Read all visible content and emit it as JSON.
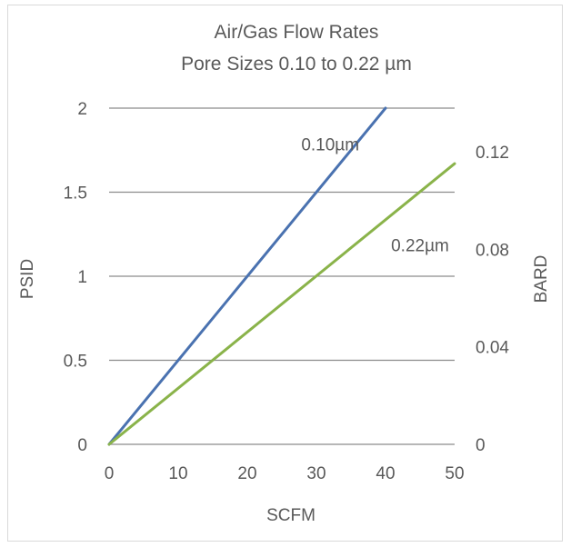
{
  "chart_data": {
    "type": "line",
    "title": "Air/Gas Flow Rates",
    "subtitle": "Pore Sizes 0.10 to 0.22 µm",
    "xlabel": "SCFM",
    "ylabel": "PSID",
    "y2label": "BARD",
    "xlim": [
      0,
      50
    ],
    "ylim": [
      0,
      2
    ],
    "y2lim": [
      0,
      0.1379
    ],
    "x_ticks": [
      "0",
      "10",
      "20",
      "30",
      "40",
      "50"
    ],
    "y_ticks": [
      "0",
      "0.5",
      "1",
      "1.5",
      "2"
    ],
    "y2_ticks": [
      "0",
      "0.04",
      "0.08",
      "0.12"
    ],
    "grid": true,
    "series": [
      {
        "name": "0.10µm",
        "color": "#4a72b0",
        "x": [
          0,
          40
        ],
        "y": [
          0,
          2
        ]
      },
      {
        "name": "0.22µm",
        "color": "#8ab34a",
        "x": [
          0,
          50
        ],
        "y": [
          0,
          1.67
        ]
      }
    ],
    "annotations": [
      {
        "text": "0.10µm",
        "x": 32,
        "y": 1.75
      },
      {
        "text": "0.22µm",
        "x": 45,
        "y": 1.15
      }
    ],
    "colors": {
      "gridline": "#8c8c8c",
      "text": "#595959",
      "border": "#d9d9d9"
    }
  }
}
